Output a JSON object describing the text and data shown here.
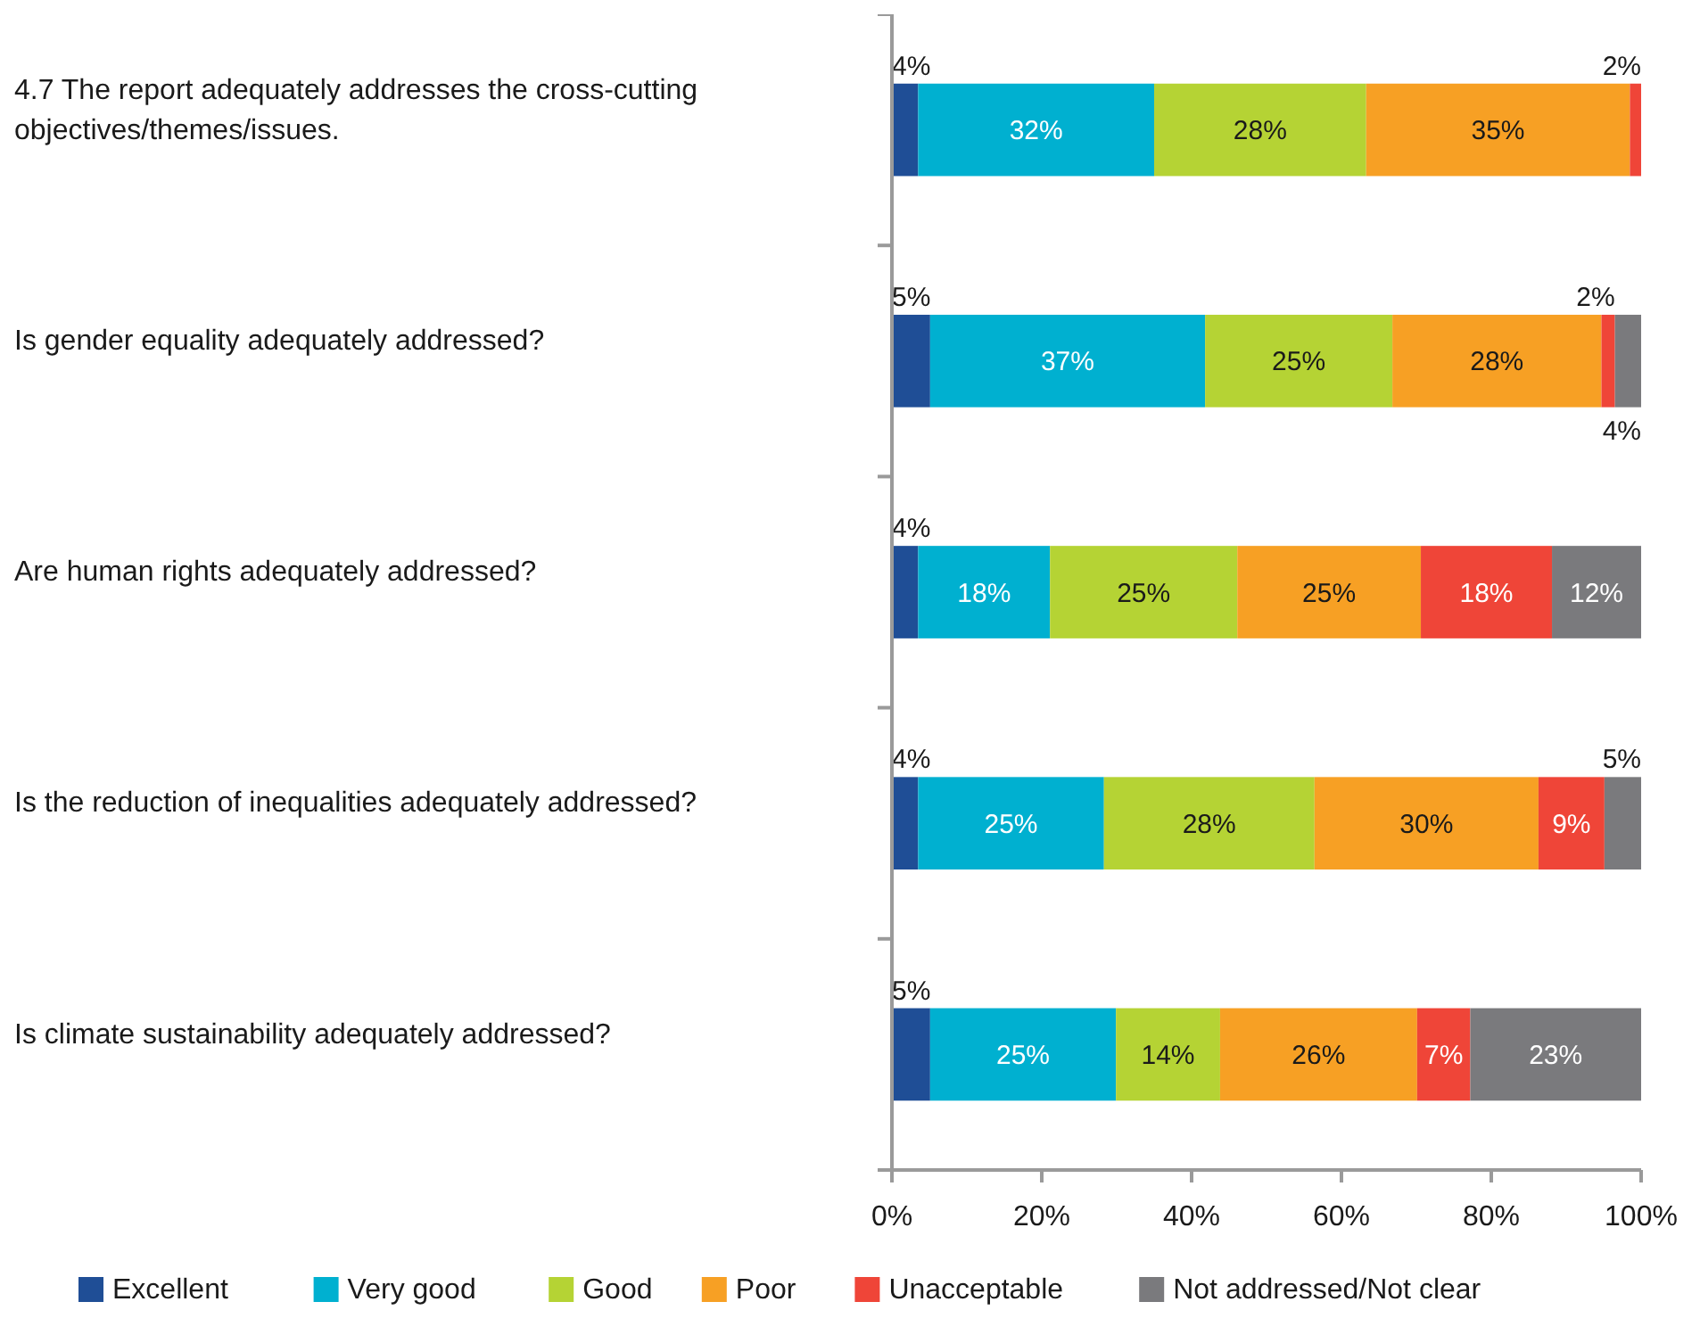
{
  "chart_data": {
    "type": "bar",
    "orientation": "horizontal",
    "stacked": true,
    "categories": [
      "4.7 The report adequately addresses the cross-cutting objectives/themes/issues.",
      "Is gender equality adequately addressed?",
      "Are human rights adequately addressed?",
      "Is the reduction of inequalities adequately addressed?",
      "Is climate sustainability adequately addressed?"
    ],
    "series": [
      {
        "name": "Excellent",
        "color": "#1f4e96",
        "values": [
          3.5,
          5.1,
          3.5,
          3.5,
          5.1
        ],
        "value_labels": [
          "4%",
          "5%",
          "4%",
          "4%",
          "5%"
        ]
      },
      {
        "name": "Very good",
        "color": "#00b0d0",
        "values": [
          31.5,
          36.7,
          17.6,
          24.8,
          24.8
        ],
        "value_labels": [
          "32%",
          "37%",
          "18%",
          "25%",
          "25%"
        ]
      },
      {
        "name": "Good",
        "color": "#b5d334",
        "values": [
          28.3,
          25,
          25,
          28.1,
          13.9
        ],
        "value_labels": [
          "28%",
          "25%",
          "25%",
          "28%",
          "14%"
        ]
      },
      {
        "name": "Poor",
        "color": "#f7a024",
        "values": [
          35.2,
          27.9,
          24.5,
          29.9,
          26.3
        ],
        "value_labels": [
          "35%",
          "28%",
          "25%",
          "30%",
          "26%"
        ]
      },
      {
        "name": "Unacceptable",
        "color": "#ef4538",
        "values": [
          1.5,
          1.8,
          17.5,
          8.8,
          7.1
        ],
        "value_labels": [
          "2%",
          "2%",
          "18%",
          "9%",
          "7%"
        ]
      },
      {
        "name": "Not addressed/Not clear",
        "color": "#7a7a7d",
        "values": [
          null,
          3.5,
          11.9,
          4.9,
          22.8
        ],
        "value_labels": [
          null,
          "4%",
          "12%",
          "5%",
          "23%"
        ]
      }
    ],
    "xlim": [
      0,
      100
    ],
    "xticks": [
      {
        "value": 0,
        "label": "0%"
      },
      {
        "value": 20,
        "label": "20%"
      },
      {
        "value": 40,
        "label": "40%"
      },
      {
        "value": 60,
        "label": "60%"
      },
      {
        "value": 80,
        "label": "80%"
      },
      {
        "value": 100,
        "label": "100%"
      }
    ],
    "legend": "bottom",
    "grid": false
  }
}
